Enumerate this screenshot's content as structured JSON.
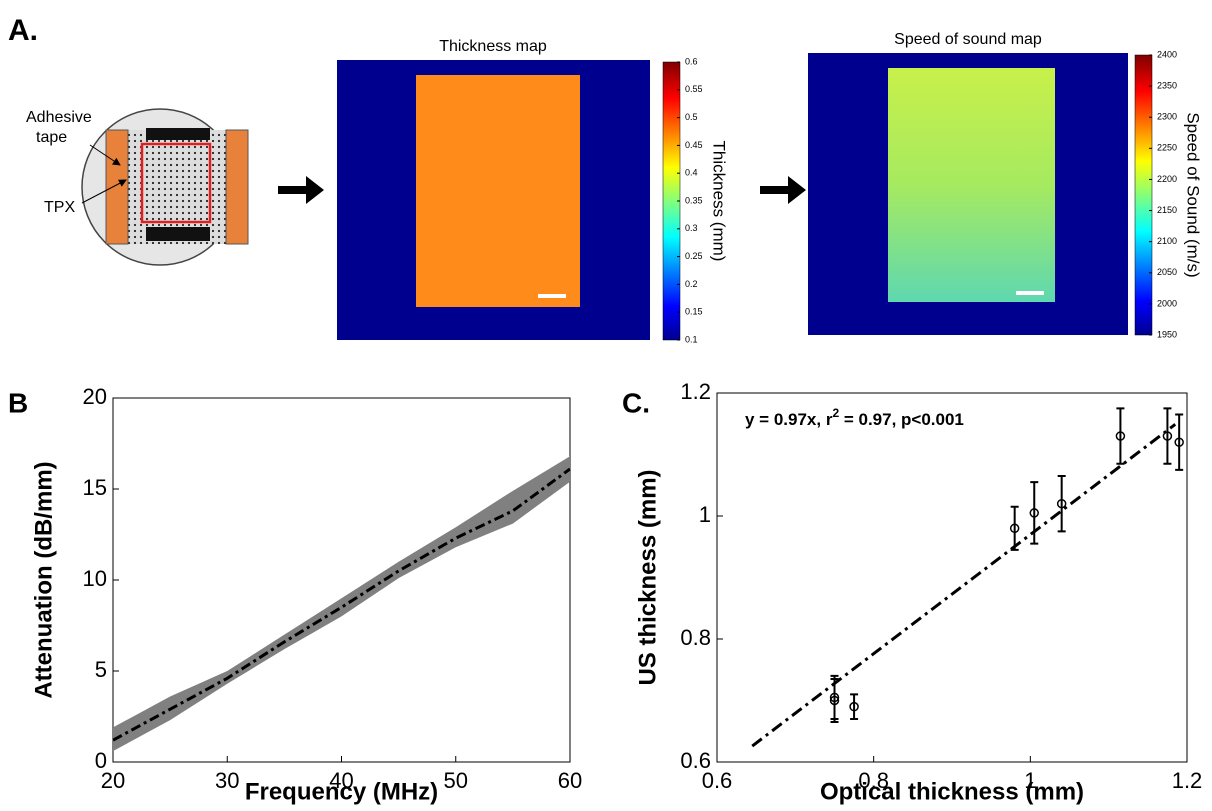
{
  "panel_labels": [
    "A.",
    "B",
    "C."
  ],
  "diagram": {
    "adhesive_label": [
      "Adhesive",
      "tape"
    ],
    "tpx_label": "TPX"
  },
  "maps": [
    {
      "title": "Thickness map",
      "colorbar_label": "Thickness (mm)",
      "clim": [
        0.1,
        0.6
      ],
      "ticks": [
        0.1,
        0.15,
        0.2,
        0.25,
        0.3,
        0.35,
        0.4,
        0.45,
        0.5,
        0.55,
        0.6
      ]
    },
    {
      "title": "Speed of sound map",
      "colorbar_label": "Speed of Sound (m/s)",
      "clim": [
        1950,
        2400
      ],
      "ticks": [
        1950,
        2000,
        2050,
        2100,
        2150,
        2200,
        2250,
        2300,
        2350,
        2400
      ]
    }
  ],
  "chart_data": [
    {
      "type": "line",
      "xlabel": "Frequency (MHz)",
      "ylabel": "Attenuation (dB/mm)",
      "x": [
        20,
        25,
        30,
        35,
        40,
        45,
        50,
        55,
        60
      ],
      "series": [
        {
          "color": "#000000",
          "values": [
            1.2,
            2.9,
            4.6,
            6.6,
            8.5,
            10.5,
            12.3,
            13.8,
            16.1
          ]
        }
      ],
      "band": {
        "color": "#808080",
        "lower": [
          0.6,
          2.3,
          4.3,
          6.2,
          8.0,
          10.1,
          11.8,
          13.1,
          15.4
        ],
        "upper": [
          1.9,
          3.6,
          5.0,
          7.0,
          9.0,
          11.0,
          12.9,
          14.9,
          16.8
        ]
      },
      "xlim": [
        20,
        60
      ],
      "ylim": [
        0,
        20
      ],
      "xticks": [
        20,
        30,
        40,
        50,
        60
      ],
      "yticks": [
        0,
        5,
        10,
        15,
        20
      ]
    },
    {
      "type": "scatter",
      "xlabel": "Optical thickness (mm)",
      "ylabel": "US thickness (mm)",
      "annotation": [
        "y = 0.97x, r",
        "2",
        " = 0.97, p<0.001"
      ],
      "x": [
        0.75,
        0.75,
        0.775,
        0.98,
        1.005,
        1.04,
        1.115,
        1.175,
        1.19
      ],
      "series": [
        {
          "color": "#000000",
          "values": [
            0.7,
            0.705,
            0.69,
            0.98,
            1.005,
            1.02,
            1.13,
            1.13,
            1.12
          ],
          "errors": [
            0.035,
            0.035,
            0.02,
            0.035,
            0.05,
            0.045,
            0.045,
            0.045,
            0.045
          ]
        }
      ],
      "fit": {
        "x": [
          0.645,
          1.185
        ],
        "y": [
          0.626,
          1.149
        ]
      },
      "xlim": [
        0.6,
        1.2
      ],
      "ylim": [
        0.6,
        1.2
      ],
      "xticks": [
        0.6,
        0.8,
        1,
        1.2
      ],
      "yticks": [
        0.6,
        0.8,
        1,
        1.2
      ]
    }
  ]
}
